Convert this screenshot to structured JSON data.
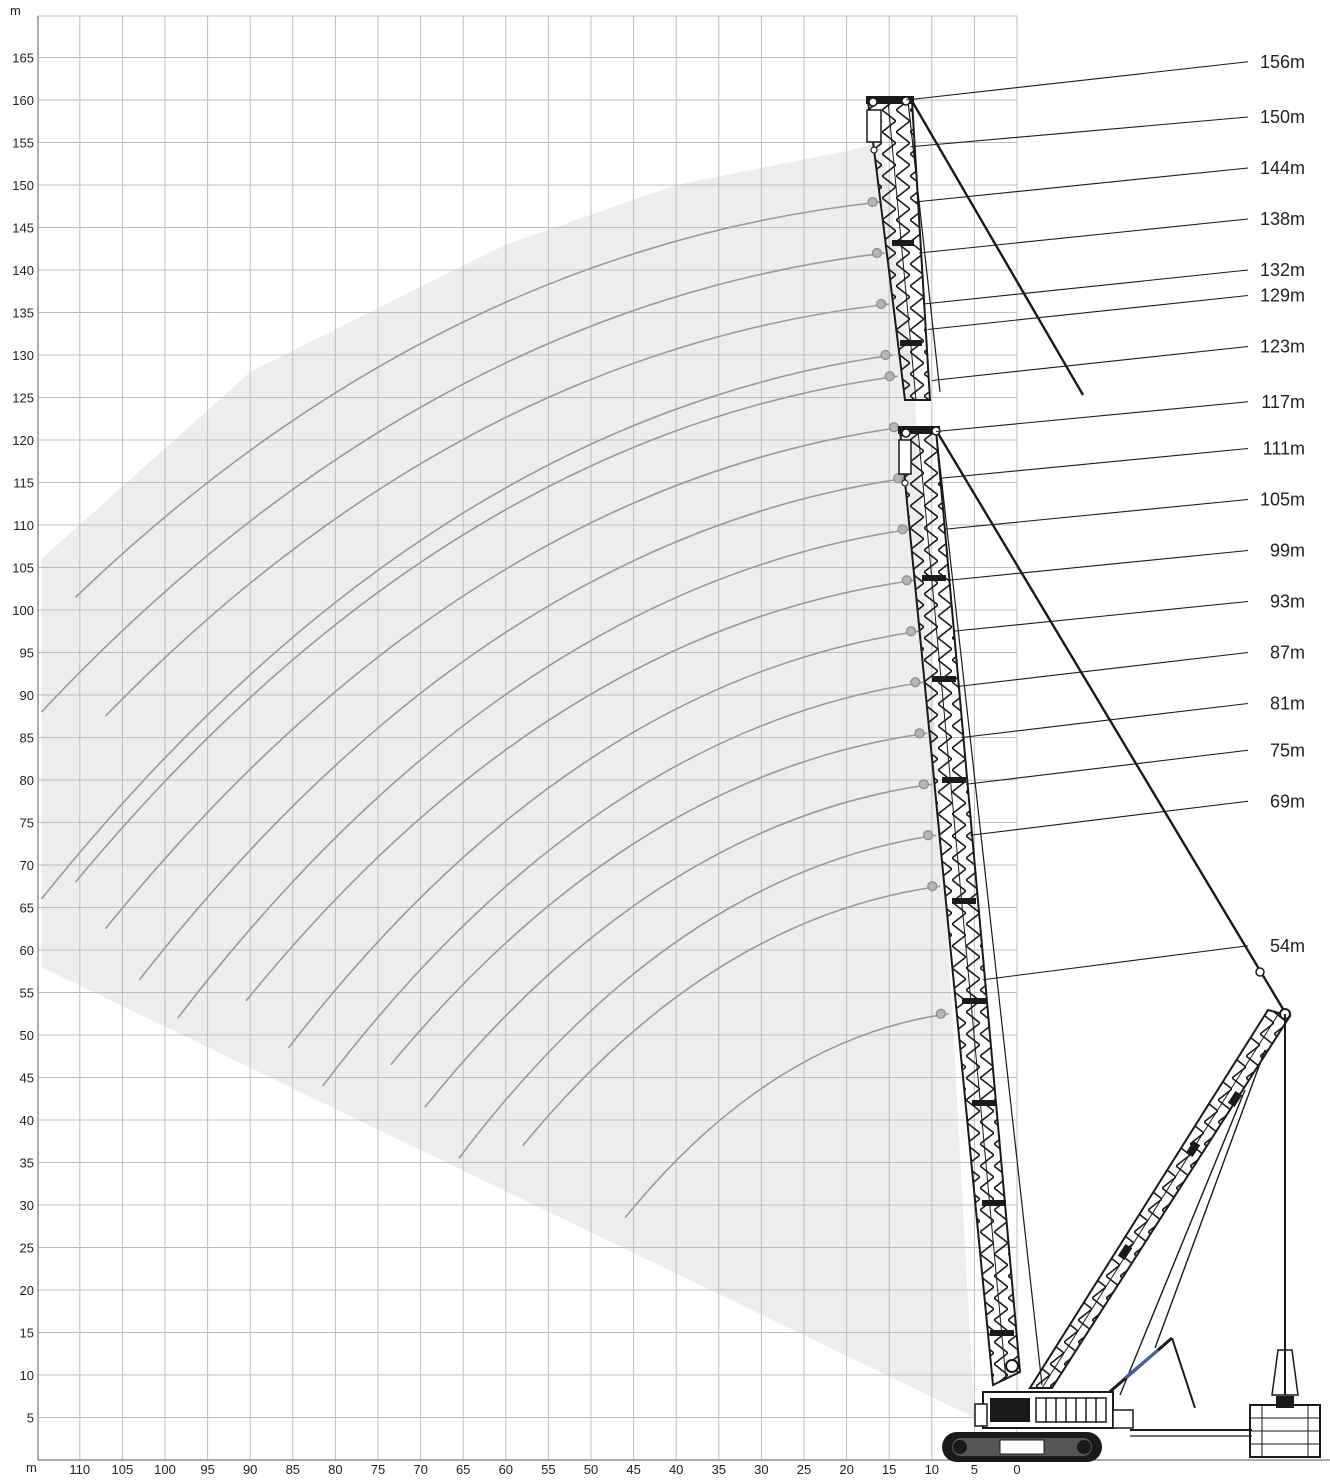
{
  "axes": {
    "x_unit": "m",
    "y_unit": "m",
    "x_range": [
      115,
      -5
    ],
    "y_range": [
      0,
      170
    ],
    "x_ticks": [
      110,
      105,
      100,
      95,
      90,
      85,
      80,
      75,
      70,
      65,
      60,
      55,
      50,
      45,
      40,
      35,
      30,
      25,
      20,
      15,
      10,
      5,
      0
    ],
    "y_ticks": [
      5,
      10,
      15,
      20,
      25,
      30,
      35,
      40,
      45,
      50,
      55,
      60,
      65,
      70,
      75,
      80,
      85,
      90,
      95,
      100,
      105,
      110,
      115,
      120,
      125,
      130,
      135,
      140,
      145,
      150,
      155,
      160,
      165
    ],
    "grid": true
  },
  "boom_labels": [
    {
      "text": "156m",
      "value": 156,
      "label_y": 164.5,
      "attach": [
        13,
        160
      ]
    },
    {
      "text": "150m",
      "value": 150,
      "label_y": 158.0,
      "attach": [
        12.5,
        154.5
      ]
    },
    {
      "text": "144m",
      "value": 144,
      "label_y": 152.0,
      "attach": [
        12,
        148
      ]
    },
    {
      "text": "138m",
      "value": 138,
      "label_y": 146.0,
      "attach": [
        11.5,
        142
      ]
    },
    {
      "text": "132m",
      "value": 132,
      "label_y": 140.0,
      "attach": [
        11,
        136
      ]
    },
    {
      "text": "129m",
      "value": 129,
      "label_y": 137.0,
      "attach": [
        10.5,
        133
      ]
    },
    {
      "text": "123m",
      "value": 123,
      "label_y": 131.0,
      "attach": [
        10,
        127
      ]
    },
    {
      "text": "117m",
      "value": 117,
      "label_y": 124.5,
      "attach": [
        9.5,
        121
      ]
    },
    {
      "text": "111m",
      "value": 111,
      "label_y": 119.0,
      "attach": [
        9,
        115.5
      ]
    },
    {
      "text": "105m",
      "value": 105,
      "label_y": 113.0,
      "attach": [
        8.5,
        109.5
      ]
    },
    {
      "text": "99m",
      "value": 99,
      "label_y": 107.0,
      "attach": [
        8,
        103.5
      ]
    },
    {
      "text": "93m",
      "value": 93,
      "label_y": 101.0,
      "attach": [
        7.5,
        97.5
      ]
    },
    {
      "text": "87m",
      "value": 87,
      "label_y": 95.0,
      "attach": [
        7,
        91
      ]
    },
    {
      "text": "81m",
      "value": 81,
      "label_y": 89.0,
      "attach": [
        6.5,
        85
      ]
    },
    {
      "text": "75m",
      "value": 75,
      "label_y": 83.5,
      "attach": [
        6,
        79.5
      ]
    },
    {
      "text": "69m",
      "value": 69,
      "label_y": 77.5,
      "attach": [
        5.5,
        73.5
      ]
    },
    {
      "text": "54m",
      "value": 54,
      "label_y": 60.5,
      "attach": [
        4,
        56.5
      ]
    }
  ],
  "colors": {
    "grid": "#bdbdbd",
    "envelope_fill": "#ededed",
    "curve": "#9a9a9a",
    "crane": "#1a1a1a",
    "label_text": "#222222",
    "lift_point": "#8c8c8c"
  },
  "envelope": {
    "polygon": [
      [
        114.5,
        58
      ],
      [
        114.5,
        106
      ],
      [
        90,
        128
      ],
      [
        60,
        143
      ],
      [
        40,
        150
      ],
      [
        20,
        154
      ],
      [
        16,
        155
      ],
      [
        15,
        150
      ],
      [
        12,
        125
      ],
      [
        8,
        60
      ],
      [
        5,
        5
      ]
    ]
  },
  "working_curves": [
    {
      "start": [
        16,
        148
      ],
      "end": [
        110.5,
        101.5
      ]
    },
    {
      "start": [
        15.5,
        142
      ],
      "end": [
        114.5,
        88
      ]
    },
    {
      "start": [
        15,
        136
      ],
      "end": [
        107,
        87.5
      ]
    },
    {
      "start": [
        14.5,
        130
      ],
      "end": [
        114.5,
        66
      ]
    },
    {
      "start": [
        14,
        127.5
      ],
      "end": [
        110.5,
        68
      ]
    },
    {
      "start": [
        13.5,
        121.5
      ],
      "end": [
        107,
        62.5
      ]
    },
    {
      "start": [
        13,
        115.5
      ],
      "end": [
        103,
        56.5
      ]
    },
    {
      "start": [
        12.5,
        109.5
      ],
      "end": [
        98.5,
        52
      ]
    },
    {
      "start": [
        12,
        103.5
      ],
      "end": [
        90.5,
        54
      ]
    },
    {
      "start": [
        11.5,
        97.5
      ],
      "end": [
        85.5,
        48.5
      ]
    },
    {
      "start": [
        11,
        91.5
      ],
      "end": [
        81.5,
        44
      ]
    },
    {
      "start": [
        10.5,
        85.5
      ],
      "end": [
        73.5,
        46.5
      ]
    },
    {
      "start": [
        10,
        79.5
      ],
      "end": [
        69.5,
        41.5
      ]
    },
    {
      "start": [
        9.5,
        73.5
      ],
      "end": [
        65.5,
        35.5
      ]
    },
    {
      "start": [
        9,
        67.5
      ],
      "end": [
        58,
        37
      ]
    },
    {
      "start": [
        8,
        52.5
      ],
      "end": [
        46,
        28.5
      ]
    }
  ],
  "lift_points": [
    [
      16,
      148
    ],
    [
      15.5,
      142
    ],
    [
      15,
      136
    ],
    [
      14.5,
      130
    ],
    [
      14,
      127.5
    ],
    [
      13.5,
      121.5
    ],
    [
      13,
      115.5
    ],
    [
      12.5,
      109.5
    ],
    [
      12,
      103.5
    ],
    [
      11.5,
      97.5
    ],
    [
      11,
      91.5
    ],
    [
      10.5,
      85.5
    ],
    [
      10,
      79.5
    ],
    [
      9.5,
      73.5
    ],
    [
      9,
      67.5
    ],
    [
      8,
      52.5
    ]
  ]
}
